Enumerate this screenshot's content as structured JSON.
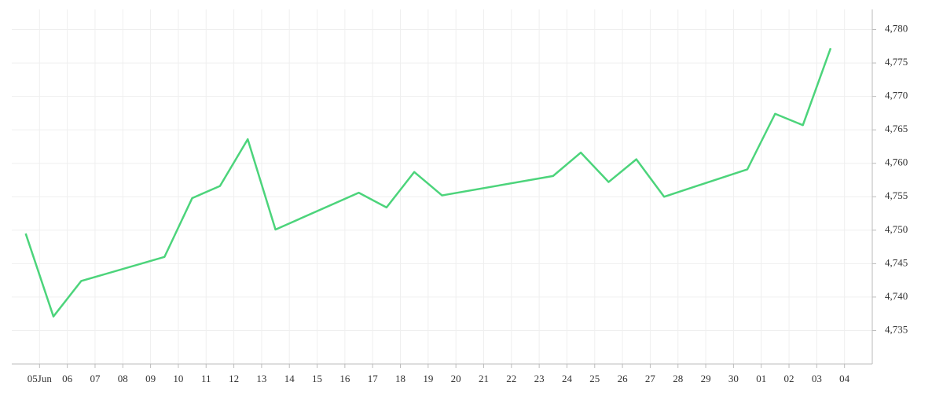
{
  "chart_data": {
    "type": "line",
    "x": [
      4.5,
      5.5,
      6.5,
      9.5,
      10.5,
      11.5,
      12.5,
      13.5,
      16.5,
      17.5,
      18.5,
      19.5,
      23.5,
      24.5,
      25.5,
      26.5,
      27.5,
      30.5,
      31.5,
      32.5,
      33.5
    ],
    "series": [
      {
        "color": "#4cd47b",
        "values": [
          4749.5,
          4737.1,
          4742.4,
          4746.0,
          4754.8,
          4756.6,
          4763.6,
          4750.1,
          4755.6,
          4753.4,
          4758.7,
          4755.2,
          4758.1,
          4761.6,
          4757.2,
          4760.6,
          4755.0,
          4759.1,
          4767.4,
          4765.7,
          4777.2
        ]
      }
    ],
    "xlim": [
      4,
      35
    ],
    "xticks": [
      {
        "value": 5,
        "label": "05Jun"
      },
      {
        "value": 6,
        "label": "06"
      },
      {
        "value": 7,
        "label": "07"
      },
      {
        "value": 8,
        "label": "08"
      },
      {
        "value": 9,
        "label": "09"
      },
      10,
      11,
      12,
      13,
      14,
      15,
      16,
      17,
      18,
      19,
      20,
      21,
      22,
      23,
      24,
      25,
      26,
      27,
      28,
      29,
      30,
      {
        "value": 31,
        "label": "01"
      },
      {
        "value": 32,
        "label": "02"
      },
      {
        "value": 33,
        "label": "03"
      },
      {
        "value": 34,
        "label": "04"
      }
    ],
    "ylim": [
      4730,
      4783
    ],
    "yticks": [
      {
        "value": 4735,
        "label": "4,735"
      },
      {
        "value": 4740,
        "label": "4,740"
      },
      {
        "value": 4745,
        "label": "4,745"
      },
      {
        "value": 4750,
        "label": "4,750"
      },
      {
        "value": 4755,
        "label": "4,755"
      },
      {
        "value": 4760,
        "label": "4,760"
      },
      {
        "value": 4765,
        "label": "4,765"
      },
      {
        "value": 4770,
        "label": "4,770"
      },
      {
        "value": 4775,
        "label": "4,775"
      },
      {
        "value": 4780,
        "label": "4,780"
      }
    ],
    "grid": true
  }
}
